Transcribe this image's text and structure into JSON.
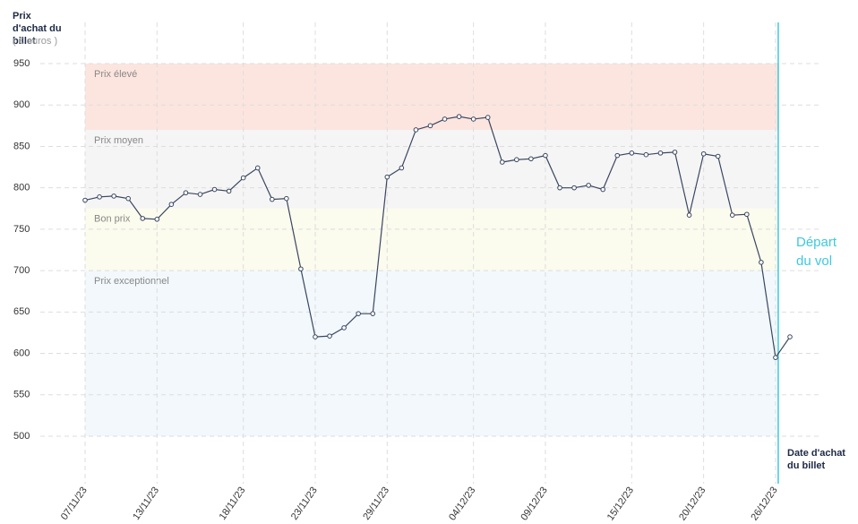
{
  "chart_data": {
    "type": "line",
    "y_title": "Prix d'achat du billet",
    "y_unit": "( € euros )",
    "x_title": "Date d'achat du billet",
    "annotation": "Départ du vol",
    "categories": [
      "07/11/23",
      null,
      null,
      null,
      null,
      "13/11/23",
      null,
      null,
      null,
      null,
      null,
      "18/11/23",
      null,
      null,
      null,
      null,
      "23/11/23",
      null,
      null,
      null,
      null,
      "29/11/23",
      null,
      null,
      null,
      null,
      null,
      "04/12/23",
      null,
      null,
      null,
      null,
      "09/12/23",
      null,
      null,
      null,
      null,
      null,
      "15/12/23",
      null,
      null,
      null,
      null,
      "20/12/23",
      null,
      null,
      null,
      null,
      "26/12/23",
      null
    ],
    "values": [
      785,
      789,
      790,
      787,
      763,
      762,
      780,
      794,
      792,
      798,
      796,
      812,
      824,
      786,
      787,
      702,
      620,
      621,
      631,
      648,
      648,
      813,
      824,
      870,
      875,
      883,
      886,
      883,
      885,
      831,
      834,
      835,
      839,
      800,
      800,
      803,
      798,
      839,
      842,
      840,
      842,
      843,
      767,
      841,
      838,
      767,
      768,
      710,
      595,
      620
    ],
    "color": "#3a4660",
    "bands": [
      {
        "label": "Prix élevé",
        "from": 870,
        "to": 950,
        "color": "#fde5df"
      },
      {
        "label": "Prix moyen",
        "from": 775,
        "to": 870,
        "color": "#f5f5f5"
      },
      {
        "label": "Bon prix",
        "from": 700,
        "to": 775,
        "color": "#fbfbee"
      },
      {
        "label": "Prix exceptionnel",
        "from": 500,
        "to": 700,
        "color": "#f2f8fc"
      }
    ],
    "ylim": [
      500,
      950
    ],
    "yticks": [
      500,
      550,
      600,
      650,
      700,
      750,
      800,
      850,
      900,
      950
    ],
    "grid": true
  }
}
